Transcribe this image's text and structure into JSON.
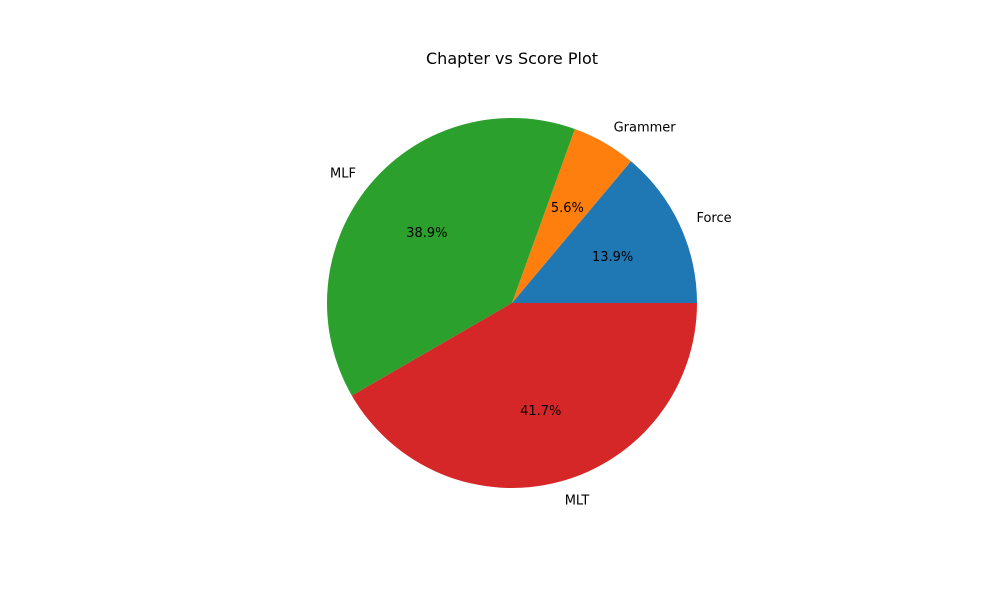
{
  "chart_data": {
    "type": "pie",
    "title": "Chapter vs Score Plot",
    "categories": [
      "Force",
      "Grammer",
      "MLF",
      "MLT"
    ],
    "values": [
      13.9,
      5.6,
      38.9,
      41.7
    ],
    "percent_labels": [
      "13.9%",
      "5.6%",
      "38.9%",
      "41.7%"
    ],
    "colors": [
      "#1f77b4",
      "#ff7f0e",
      "#2ca02c",
      "#d62728"
    ],
    "start_angle_deg": 0,
    "direction": "counterclockwise",
    "legend": "none"
  }
}
